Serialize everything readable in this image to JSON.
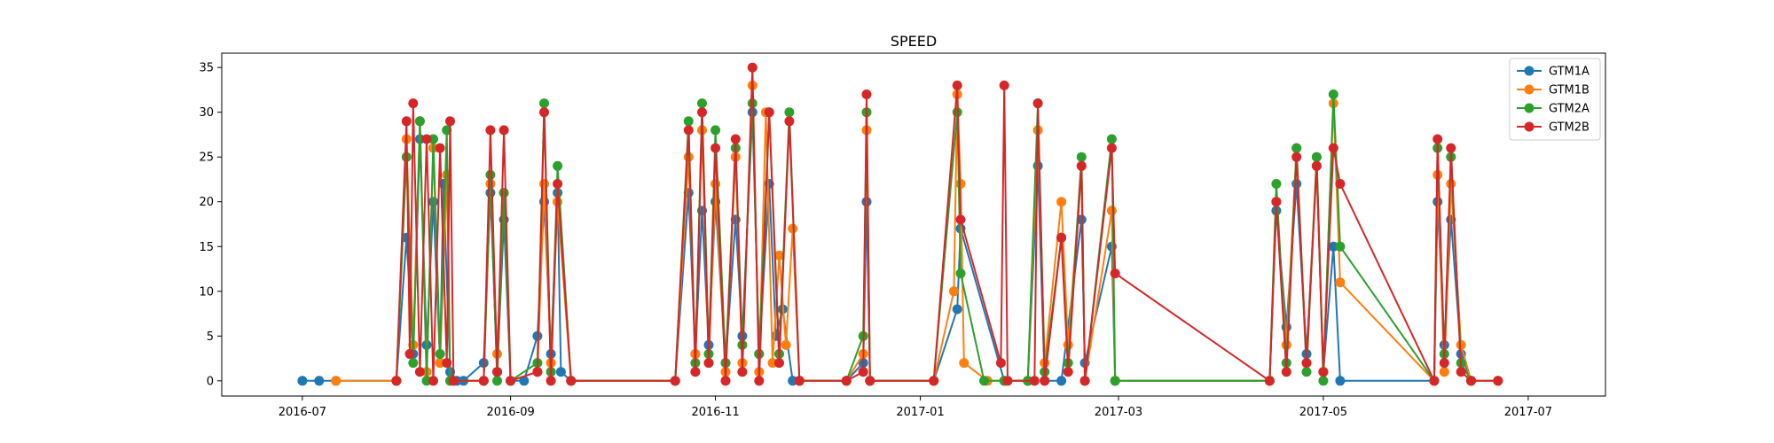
{
  "chart_data": {
    "type": "line",
    "title": "SPEED",
    "xlabel": "",
    "ylabel": "",
    "x_axis_type": "date",
    "xlim": [
      "2016-06-07",
      "2017-07-24"
    ],
    "ylim": [
      -1.7,
      36.6
    ],
    "x_ticks": [
      {
        "date": "2016-07-01",
        "label": "2016-07"
      },
      {
        "date": "2016-09-01",
        "label": "2016-09"
      },
      {
        "date": "2016-11-01",
        "label": "2016-11"
      },
      {
        "date": "2017-01-01",
        "label": "2017-01"
      },
      {
        "date": "2017-03-01",
        "label": "2017-03"
      },
      {
        "date": "2017-05-01",
        "label": "2017-05"
      },
      {
        "date": "2017-07-01",
        "label": "2017-07"
      }
    ],
    "y_ticks": [
      0,
      5,
      10,
      15,
      20,
      25,
      30,
      35
    ],
    "grid": false,
    "legend_position": "top-right",
    "series": [
      {
        "name": "GTM1A",
        "color": "#1f77b4",
        "points": [
          [
            "2016-07-01",
            0
          ],
          [
            "2016-07-06",
            0
          ],
          [
            "2016-07-11",
            0
          ],
          [
            "2016-07-29",
            0
          ],
          [
            "2016-08-01",
            16
          ],
          [
            "2016-08-03",
            3
          ],
          [
            "2016-08-05",
            27
          ],
          [
            "2016-08-07",
            4
          ],
          [
            "2016-08-09",
            20
          ],
          [
            "2016-08-11",
            2
          ],
          [
            "2016-08-12",
            22
          ],
          [
            "2016-08-14",
            1
          ],
          [
            "2016-08-16",
            0
          ],
          [
            "2016-08-18",
            0
          ],
          [
            "2016-08-24",
            2
          ],
          [
            "2016-08-26",
            21
          ],
          [
            "2016-08-28",
            1
          ],
          [
            "2016-08-30",
            18
          ],
          [
            "2016-09-01",
            0
          ],
          [
            "2016-09-05",
            0
          ],
          [
            "2016-09-09",
            5
          ],
          [
            "2016-09-11",
            20
          ],
          [
            "2016-09-13",
            3
          ],
          [
            "2016-09-15",
            21
          ],
          [
            "2016-09-16",
            1
          ],
          [
            "2016-09-19",
            0
          ],
          [
            "2016-10-20",
            0
          ],
          [
            "2016-10-24",
            21
          ],
          [
            "2016-10-26",
            3
          ],
          [
            "2016-10-28",
            19
          ],
          [
            "2016-10-30",
            4
          ],
          [
            "2016-11-01",
            20
          ],
          [
            "2016-11-04",
            2
          ],
          [
            "2016-11-07",
            18
          ],
          [
            "2016-11-09",
            5
          ],
          [
            "2016-11-12",
            30
          ],
          [
            "2016-11-14",
            3
          ],
          [
            "2016-11-17",
            22
          ],
          [
            "2016-11-19",
            5
          ],
          [
            "2016-11-21",
            8
          ],
          [
            "2016-11-24",
            0
          ],
          [
            "2016-11-26",
            0
          ],
          [
            "2016-12-10",
            0
          ],
          [
            "2016-12-15",
            2
          ],
          [
            "2016-12-16",
            20
          ],
          [
            "2016-12-17",
            0
          ],
          [
            "2017-01-05",
            0
          ],
          [
            "2017-01-12",
            8
          ],
          [
            "2017-01-13",
            17
          ],
          [
            "2017-01-26",
            0
          ],
          [
            "2017-02-02",
            0
          ],
          [
            "2017-02-05",
            24
          ],
          [
            "2017-02-07",
            0
          ],
          [
            "2017-02-12",
            0
          ],
          [
            "2017-02-18",
            18
          ],
          [
            "2017-02-19",
            2
          ],
          [
            "2017-02-27",
            15
          ],
          [
            "2017-02-28",
            0
          ],
          [
            "2017-04-15",
            0
          ],
          [
            "2017-04-17",
            19
          ],
          [
            "2017-04-20",
            6
          ],
          [
            "2017-04-23",
            22
          ],
          [
            "2017-04-26",
            3
          ],
          [
            "2017-04-29",
            24
          ],
          [
            "2017-05-01",
            1
          ],
          [
            "2017-05-04",
            15
          ],
          [
            "2017-05-06",
            0
          ],
          [
            "2017-06-03",
            0
          ],
          [
            "2017-06-04",
            20
          ],
          [
            "2017-06-06",
            4
          ],
          [
            "2017-06-08",
            18
          ],
          [
            "2017-06-11",
            3
          ],
          [
            "2017-06-14",
            0
          ],
          [
            "2017-06-22",
            0
          ]
        ]
      },
      {
        "name": "GTM1B",
        "color": "#ff7f0e",
        "points": [
          [
            "2016-07-11",
            0
          ],
          [
            "2016-07-29",
            0
          ],
          [
            "2016-08-01",
            27
          ],
          [
            "2016-08-03",
            4
          ],
          [
            "2016-08-05",
            29
          ],
          [
            "2016-08-07",
            1
          ],
          [
            "2016-08-09",
            26
          ],
          [
            "2016-08-11",
            2
          ],
          [
            "2016-08-13",
            23
          ],
          [
            "2016-08-14",
            0
          ],
          [
            "2016-08-24",
            0
          ],
          [
            "2016-08-26",
            22
          ],
          [
            "2016-08-28",
            3
          ],
          [
            "2016-08-30",
            21
          ],
          [
            "2016-09-01",
            0
          ],
          [
            "2016-09-09",
            1
          ],
          [
            "2016-09-11",
            22
          ],
          [
            "2016-09-13",
            2
          ],
          [
            "2016-09-15",
            20
          ],
          [
            "2016-09-19",
            0
          ],
          [
            "2016-10-20",
            0
          ],
          [
            "2016-10-24",
            25
          ],
          [
            "2016-10-26",
            3
          ],
          [
            "2016-10-28",
            28
          ],
          [
            "2016-10-30",
            2
          ],
          [
            "2016-11-01",
            22
          ],
          [
            "2016-11-04",
            1
          ],
          [
            "2016-11-07",
            25
          ],
          [
            "2016-11-09",
            2
          ],
          [
            "2016-11-12",
            33
          ],
          [
            "2016-11-14",
            1
          ],
          [
            "2016-11-16",
            30
          ],
          [
            "2016-11-18",
            2
          ],
          [
            "2016-11-20",
            14
          ],
          [
            "2016-11-22",
            4
          ],
          [
            "2016-11-24",
            17
          ],
          [
            "2016-11-26",
            0
          ],
          [
            "2016-12-10",
            0
          ],
          [
            "2016-12-15",
            3
          ],
          [
            "2016-12-16",
            28
          ],
          [
            "2016-12-17",
            0
          ],
          [
            "2017-01-05",
            0
          ],
          [
            "2017-01-11",
            10
          ],
          [
            "2017-01-12",
            32
          ],
          [
            "2017-01-13",
            22
          ],
          [
            "2017-01-14",
            2
          ],
          [
            "2017-01-21",
            0
          ],
          [
            "2017-01-26",
            0
          ],
          [
            "2017-02-02",
            0
          ],
          [
            "2017-02-05",
            28
          ],
          [
            "2017-02-07",
            2
          ],
          [
            "2017-02-12",
            20
          ],
          [
            "2017-02-14",
            4
          ],
          [
            "2017-02-18",
            24
          ],
          [
            "2017-02-19",
            0
          ],
          [
            "2017-02-27",
            19
          ],
          [
            "2017-02-28",
            0
          ],
          [
            "2017-04-15",
            0
          ],
          [
            "2017-04-17",
            20
          ],
          [
            "2017-04-20",
            4
          ],
          [
            "2017-04-23",
            26
          ],
          [
            "2017-04-26",
            2
          ],
          [
            "2017-04-29",
            25
          ],
          [
            "2017-05-01",
            1
          ],
          [
            "2017-05-04",
            31
          ],
          [
            "2017-05-06",
            11
          ],
          [
            "2017-06-03",
            0
          ],
          [
            "2017-06-04",
            23
          ],
          [
            "2017-06-06",
            1
          ],
          [
            "2017-06-08",
            22
          ],
          [
            "2017-06-11",
            4
          ],
          [
            "2017-06-14",
            0
          ],
          [
            "2017-06-22",
            0
          ]
        ]
      },
      {
        "name": "GTM2A",
        "color": "#2ca02c",
        "points": [
          [
            "2016-07-29",
            0
          ],
          [
            "2016-08-01",
            25
          ],
          [
            "2016-08-03",
            2
          ],
          [
            "2016-08-05",
            29
          ],
          [
            "2016-08-07",
            0
          ],
          [
            "2016-08-09",
            27
          ],
          [
            "2016-08-11",
            3
          ],
          [
            "2016-08-13",
            28
          ],
          [
            "2016-08-14",
            0
          ],
          [
            "2016-08-24",
            0
          ],
          [
            "2016-08-26",
            23
          ],
          [
            "2016-08-28",
            0
          ],
          [
            "2016-08-30",
            21
          ],
          [
            "2016-09-01",
            0
          ],
          [
            "2016-09-09",
            2
          ],
          [
            "2016-09-11",
            31
          ],
          [
            "2016-09-13",
            1
          ],
          [
            "2016-09-15",
            24
          ],
          [
            "2016-09-19",
            0
          ],
          [
            "2016-10-20",
            0
          ],
          [
            "2016-10-24",
            29
          ],
          [
            "2016-10-26",
            2
          ],
          [
            "2016-10-28",
            31
          ],
          [
            "2016-10-30",
            3
          ],
          [
            "2016-11-01",
            28
          ],
          [
            "2016-11-04",
            2
          ],
          [
            "2016-11-07",
            26
          ],
          [
            "2016-11-09",
            4
          ],
          [
            "2016-11-12",
            31
          ],
          [
            "2016-11-14",
            3
          ],
          [
            "2016-11-17",
            30
          ],
          [
            "2016-11-20",
            3
          ],
          [
            "2016-11-23",
            30
          ],
          [
            "2016-11-26",
            0
          ],
          [
            "2016-12-10",
            0
          ],
          [
            "2016-12-15",
            5
          ],
          [
            "2016-12-16",
            30
          ],
          [
            "2016-12-17",
            0
          ],
          [
            "2017-01-05",
            0
          ],
          [
            "2017-01-12",
            30
          ],
          [
            "2017-01-13",
            12
          ],
          [
            "2017-01-20",
            0
          ],
          [
            "2017-01-26",
            0
          ],
          [
            "2017-02-02",
            0
          ],
          [
            "2017-02-05",
            31
          ],
          [
            "2017-02-07",
            1
          ],
          [
            "2017-02-12",
            16
          ],
          [
            "2017-02-14",
            2
          ],
          [
            "2017-02-18",
            25
          ],
          [
            "2017-02-19",
            0
          ],
          [
            "2017-02-27",
            27
          ],
          [
            "2017-02-28",
            0
          ],
          [
            "2017-04-15",
            0
          ],
          [
            "2017-04-17",
            22
          ],
          [
            "2017-04-20",
            2
          ],
          [
            "2017-04-23",
            26
          ],
          [
            "2017-04-26",
            1
          ],
          [
            "2017-04-29",
            25
          ],
          [
            "2017-05-01",
            0
          ],
          [
            "2017-05-04",
            32
          ],
          [
            "2017-05-06",
            15
          ],
          [
            "2017-06-03",
            0
          ],
          [
            "2017-06-04",
            26
          ],
          [
            "2017-06-06",
            3
          ],
          [
            "2017-06-08",
            25
          ],
          [
            "2017-06-11",
            2
          ],
          [
            "2017-06-14",
            0
          ]
        ]
      },
      {
        "name": "GTM2B",
        "color": "#d62728",
        "points": [
          [
            "2016-07-29",
            0
          ],
          [
            "2016-08-01",
            29
          ],
          [
            "2016-08-02",
            3
          ],
          [
            "2016-08-03",
            31
          ],
          [
            "2016-08-05",
            1
          ],
          [
            "2016-08-07",
            27
          ],
          [
            "2016-08-09",
            0
          ],
          [
            "2016-08-11",
            26
          ],
          [
            "2016-08-13",
            2
          ],
          [
            "2016-08-14",
            29
          ],
          [
            "2016-08-15",
            0
          ],
          [
            "2016-08-24",
            0
          ],
          [
            "2016-08-26",
            28
          ],
          [
            "2016-08-28",
            1
          ],
          [
            "2016-08-30",
            28
          ],
          [
            "2016-09-01",
            0
          ],
          [
            "2016-09-09",
            1
          ],
          [
            "2016-09-11",
            30
          ],
          [
            "2016-09-13",
            0
          ],
          [
            "2016-09-15",
            22
          ],
          [
            "2016-09-19",
            0
          ],
          [
            "2016-10-20",
            0
          ],
          [
            "2016-10-24",
            28
          ],
          [
            "2016-10-26",
            1
          ],
          [
            "2016-10-28",
            30
          ],
          [
            "2016-10-30",
            2
          ],
          [
            "2016-11-01",
            26
          ],
          [
            "2016-11-04",
            0
          ],
          [
            "2016-11-07",
            27
          ],
          [
            "2016-11-09",
            1
          ],
          [
            "2016-11-12",
            35
          ],
          [
            "2016-11-14",
            0
          ],
          [
            "2016-11-17",
            30
          ],
          [
            "2016-11-20",
            2
          ],
          [
            "2016-11-23",
            29
          ],
          [
            "2016-11-26",
            0
          ],
          [
            "2016-12-10",
            0
          ],
          [
            "2016-12-15",
            1
          ],
          [
            "2016-12-16",
            32
          ],
          [
            "2016-12-17",
            0
          ],
          [
            "2017-01-05",
            0
          ],
          [
            "2017-01-12",
            33
          ],
          [
            "2017-01-13",
            18
          ],
          [
            "2017-01-25",
            2
          ],
          [
            "2017-01-26",
            33
          ],
          [
            "2017-01-27",
            0
          ],
          [
            "2017-02-04",
            0
          ],
          [
            "2017-02-05",
            31
          ],
          [
            "2017-02-07",
            0
          ],
          [
            "2017-02-12",
            16
          ],
          [
            "2017-02-14",
            1
          ],
          [
            "2017-02-18",
            24
          ],
          [
            "2017-02-19",
            0
          ],
          [
            "2017-02-27",
            26
          ],
          [
            "2017-02-28",
            12
          ],
          [
            "2017-04-15",
            0
          ],
          [
            "2017-04-17",
            20
          ],
          [
            "2017-04-20",
            1
          ],
          [
            "2017-04-23",
            25
          ],
          [
            "2017-04-26",
            2
          ],
          [
            "2017-04-29",
            24
          ],
          [
            "2017-05-01",
            1
          ],
          [
            "2017-05-04",
            26
          ],
          [
            "2017-05-06",
            22
          ],
          [
            "2017-06-03",
            0
          ],
          [
            "2017-06-04",
            27
          ],
          [
            "2017-06-06",
            2
          ],
          [
            "2017-06-08",
            26
          ],
          [
            "2017-06-11",
            1
          ],
          [
            "2017-06-14",
            0
          ],
          [
            "2017-06-22",
            0
          ]
        ]
      }
    ]
  }
}
